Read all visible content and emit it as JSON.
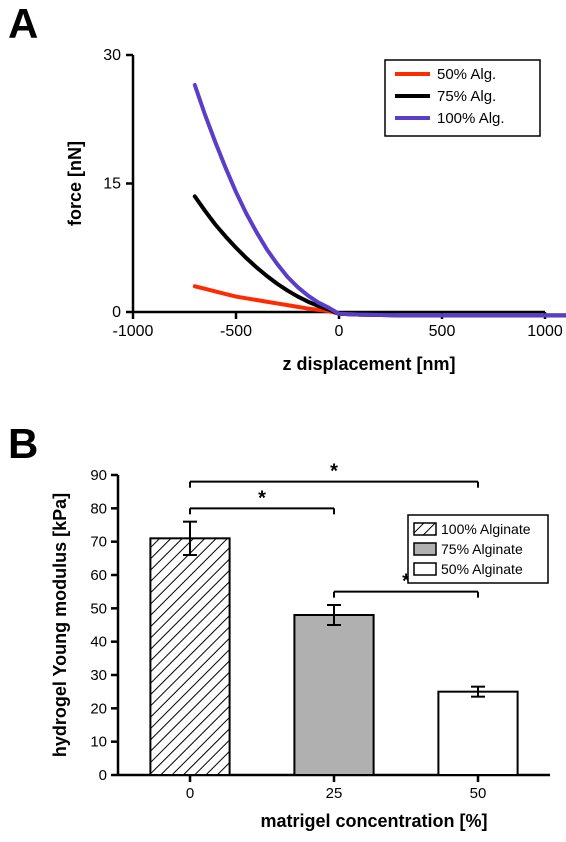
{
  "panelA": {
    "label": "A",
    "type": "line",
    "xlabel": "z displacement [nm]",
    "ylabel": "force [nN]",
    "xlim": [
      -1000,
      1000
    ],
    "ylim": [
      0,
      30
    ],
    "xticks": [
      -1000,
      -500,
      0,
      500,
      1000
    ],
    "yticks": [
      0,
      15,
      30
    ],
    "axis_linewidth": 2.5,
    "tick_fontsize": 16,
    "label_fontsize": 18,
    "label_fontweight": "bold",
    "series_linewidth": 4,
    "legend": {
      "items": [
        {
          "label": "50% Alg.",
          "color": "#ff2a00"
        },
        {
          "label": "75% Alg.",
          "color": "#000000"
        },
        {
          "label": "100% Alg.",
          "color": "#5a3ec8"
        }
      ],
      "fontsize": 15,
      "box_stroke": "#000000"
    },
    "series": [
      {
        "name": "50% Alg.",
        "color": "#ff2a00",
        "x": [
          -700,
          -650,
          -600,
          -550,
          -500,
          -450,
          -400,
          -350,
          -300,
          -250,
          -200,
          -150,
          -100,
          -50,
          0,
          100,
          200,
          300,
          400,
          500,
          600,
          700,
          800,
          900,
          1000,
          1100
        ],
        "y": [
          3.0,
          2.7,
          2.4,
          2.1,
          1.8,
          1.6,
          1.4,
          1.2,
          1.0,
          0.8,
          0.6,
          0.4,
          0.25,
          0.1,
          -0.2,
          -0.3,
          -0.35,
          -0.4,
          -0.4,
          -0.4,
          -0.4,
          -0.4,
          -0.4,
          -0.4,
          -0.4,
          -0.4
        ]
      },
      {
        "name": "75% Alg.",
        "color": "#000000",
        "x": [
          -700,
          -650,
          -600,
          -550,
          -500,
          -450,
          -400,
          -350,
          -300,
          -250,
          -200,
          -150,
          -100,
          -50,
          0,
          100,
          200,
          300,
          400,
          500,
          600,
          700,
          800,
          900,
          1000,
          1100
        ],
        "y": [
          13.5,
          11.8,
          10.2,
          8.8,
          7.5,
          6.3,
          5.2,
          4.2,
          3.3,
          2.5,
          1.8,
          1.2,
          0.7,
          0.3,
          -0.2,
          -0.3,
          -0.35,
          -0.4,
          -0.4,
          -0.4,
          -0.4,
          -0.4,
          -0.4,
          -0.4,
          -0.4,
          -0.4
        ]
      },
      {
        "name": "100% Alg.",
        "color": "#5a3ec8",
        "x": [
          -700,
          -650,
          -600,
          -550,
          -500,
          -450,
          -400,
          -350,
          -300,
          -250,
          -200,
          -150,
          -100,
          -50,
          0,
          100,
          200,
          300,
          400,
          500,
          600,
          700,
          800,
          900,
          1000,
          1100
        ],
        "y": [
          26.5,
          23.0,
          19.8,
          16.8,
          14.0,
          11.5,
          9.3,
          7.3,
          5.6,
          4.1,
          2.9,
          1.9,
          1.1,
          0.5,
          -0.2,
          -0.3,
          -0.35,
          -0.4,
          -0.4,
          -0.4,
          -0.4,
          -0.4,
          -0.4,
          -0.4,
          -0.4,
          -0.4
        ]
      }
    ]
  },
  "panelB": {
    "label": "B",
    "type": "bar",
    "xlabel": "matrigel concentration [%]",
    "ylabel": "hydrogel Young modulus [kPa]",
    "ylim": [
      0,
      90
    ],
    "yticks": [
      0,
      10,
      20,
      30,
      40,
      50,
      60,
      70,
      80,
      90
    ],
    "xticks": [
      "0",
      "25",
      "50"
    ],
    "axis_linewidth": 2.5,
    "tick_fontsize": 15,
    "label_fontsize": 18,
    "label_fontweight": "bold",
    "bar_width": 0.55,
    "bar_stroke": "#000000",
    "bars": [
      {
        "cat": "0",
        "value": 71,
        "err": 5,
        "fill": "hatch"
      },
      {
        "cat": "25",
        "value": 48,
        "err": 3,
        "fill": "#b0b0b0"
      },
      {
        "cat": "50",
        "value": 25,
        "err": 1.5,
        "fill": "#ffffff"
      }
    ],
    "legend": {
      "items": [
        {
          "label": "100% Alginate",
          "fill": "hatch"
        },
        {
          "label": "75% Alginate",
          "fill": "#b0b0b0"
        },
        {
          "label": "50% Alginate",
          "fill": "#ffffff"
        }
      ],
      "fontsize": 14,
      "box_stroke": "#000000"
    },
    "sig_bars": [
      {
        "from": 0,
        "to": 2,
        "y": 88,
        "label": "*"
      },
      {
        "from": 0,
        "to": 1,
        "y": 80,
        "label": "*"
      },
      {
        "from": 1,
        "to": 2,
        "y": 55,
        "label": "*"
      }
    ],
    "sig_fontsize": 20
  }
}
